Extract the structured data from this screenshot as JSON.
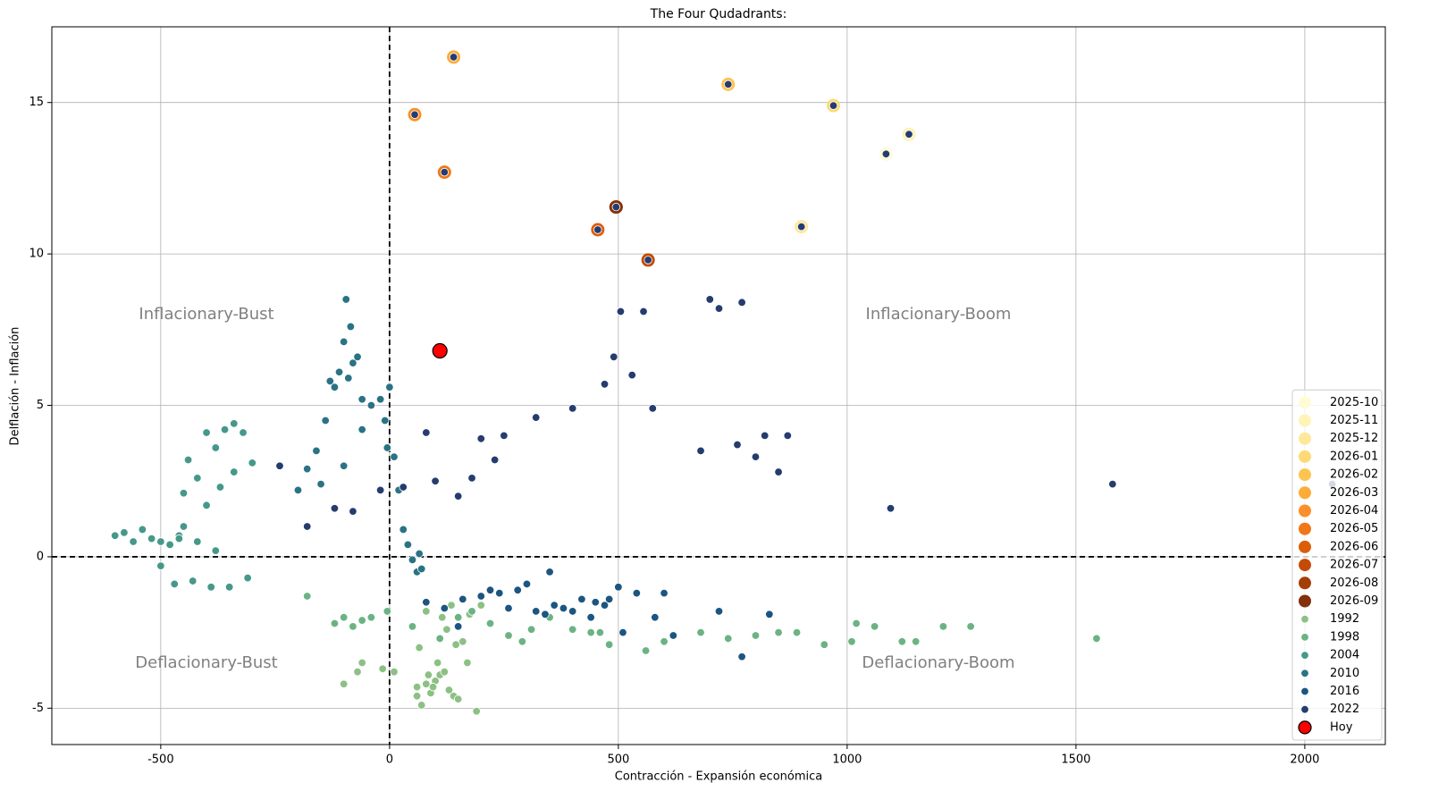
{
  "chart_data": {
    "type": "scatter",
    "title": "The Four Qudadrants:",
    "xlabel": "Contracción - Expansión económica",
    "ylabel": "Delflación - Inflación",
    "xlim": [
      -738,
      2176
    ],
    "ylim": [
      -6.2,
      17.5
    ],
    "xticks": [
      -500,
      0,
      500,
      1000,
      1500,
      2000
    ],
    "yticks": [
      -5,
      0,
      5,
      10,
      15
    ],
    "grid": true,
    "legend": "lower right",
    "annotations": [
      "Inflacionary-Bust",
      "Inflacionary-Boom",
      "Deflacionary-Bust",
      "Deflacionary-Boom"
    ],
    "forecast_series": [
      {
        "name": "2025-10",
        "color": "#fffbd5",
        "x": [
          1085
        ],
        "y": [
          13.3
        ]
      },
      {
        "name": "2025-11",
        "color": "#fff3b8",
        "x": [
          1135
        ],
        "y": [
          13.95
        ]
      },
      {
        "name": "2025-12",
        "color": "#fee89a",
        "x": [
          900
        ],
        "y": [
          10.9
        ]
      },
      {
        "name": "2026-01",
        "color": "#fed976",
        "x": [
          970
        ],
        "y": [
          14.9
        ]
      },
      {
        "name": "2026-02",
        "color": "#fec44f",
        "x": [
          740
        ],
        "y": [
          15.6
        ]
      },
      {
        "name": "2026-03",
        "color": "#fdac3a",
        "x": [
          140
        ],
        "y": [
          16.5
        ]
      },
      {
        "name": "2026-04",
        "color": "#fb8f29",
        "x": [
          55
        ],
        "y": [
          14.6
        ]
      },
      {
        "name": "2026-05",
        "color": "#f07818",
        "x": [
          120
        ],
        "y": [
          12.7
        ]
      },
      {
        "name": "2026-06",
        "color": "#dc5e0a",
        "x": [
          455
        ],
        "y": [
          10.8
        ]
      },
      {
        "name": "2026-07",
        "color": "#c44b05",
        "x": [
          565
        ],
        "y": [
          9.8
        ]
      },
      {
        "name": "2026-08",
        "color": "#a53e04",
        "x": [
          495
        ],
        "y": [
          11.55
        ]
      },
      {
        "name": "2026-09",
        "color": "#84300a",
        "x": [
          495
        ],
        "y": [
          11.55
        ]
      }
    ],
    "series": [
      {
        "name": "1992",
        "color": "#8cc084",
        "x": [
          -100,
          -60,
          -70,
          -15,
          10,
          60,
          70,
          80,
          90,
          100,
          110,
          120,
          130,
          140,
          150,
          95,
          85,
          105,
          65,
          190,
          170,
          160,
          125,
          115,
          135,
          145,
          175,
          200,
          80,
          60
        ],
        "y": [
          -4.2,
          -3.5,
          -3.8,
          -3.7,
          -3.8,
          -4.3,
          -4.9,
          -4.2,
          -4.5,
          -4.1,
          -3.9,
          -3.8,
          -4.4,
          -4.6,
          -4.7,
          -4.3,
          -3.9,
          -3.5,
          -3.0,
          -5.1,
          -3.5,
          -2.8,
          -2.4,
          -2.0,
          -1.6,
          -2.9,
          -1.9,
          -1.6,
          -1.8,
          -4.6
        ]
      },
      {
        "name": "1998",
        "color": "#6bb383",
        "x": [
          -180,
          -120,
          -100,
          -80,
          -60,
          -40,
          -5,
          50,
          110,
          150,
          180,
          220,
          260,
          290,
          310,
          350,
          400,
          440,
          460,
          480,
          560,
          600,
          680,
          740,
          800,
          850,
          890,
          950,
          1010,
          1020,
          1060,
          1120,
          1150,
          1210,
          1270,
          1545
        ],
        "y": [
          -1.3,
          -2.2,
          -2.0,
          -2.3,
          -2.1,
          -2.0,
          -1.8,
          -2.3,
          -2.7,
          -2.0,
          -1.8,
          -2.2,
          -2.6,
          -2.8,
          -2.4,
          -2.0,
          -2.4,
          -2.5,
          -2.5,
          -2.9,
          -3.1,
          -2.8,
          -2.5,
          -2.7,
          -2.6,
          -2.5,
          -2.5,
          -2.9,
          -2.8,
          -2.2,
          -2.3,
          -2.8,
          -2.8,
          -2.3,
          -2.3,
          -2.7
        ]
      },
      {
        "name": "2004",
        "color": "#45988a",
        "x": [
          -600,
          -580,
          -560,
          -540,
          -520,
          -500,
          -480,
          -460,
          -450,
          -440,
          -420,
          -400,
          -380,
          -360,
          -340,
          -320,
          -300,
          -470,
          -430,
          -390,
          -350,
          -310,
          -450,
          -400,
          -370,
          -340,
          -500,
          -460,
          -420,
          -380
        ],
        "y": [
          0.7,
          0.8,
          0.5,
          0.9,
          0.6,
          0.5,
          0.4,
          0.7,
          2.1,
          3.2,
          0.5,
          4.1,
          3.6,
          4.2,
          4.4,
          4.1,
          3.1,
          -0.9,
          -0.8,
          -1.0,
          -1.0,
          -0.7,
          1.0,
          1.7,
          2.3,
          2.8,
          -0.3,
          0.6,
          2.6,
          0.2
        ]
      },
      {
        "name": "2010",
        "color": "#2a7384",
        "x": [
          -200,
          -180,
          -160,
          -140,
          -130,
          -120,
          -110,
          -100,
          -95,
          -90,
          -85,
          -80,
          -70,
          -60,
          -40,
          -20,
          -10,
          0,
          -5,
          10,
          20,
          30,
          40,
          50,
          60,
          65,
          70,
          -150,
          -100,
          -60
        ],
        "y": [
          2.2,
          2.9,
          3.5,
          4.5,
          5.8,
          5.6,
          6.1,
          7.1,
          8.5,
          5.9,
          7.6,
          6.4,
          6.6,
          5.2,
          5.0,
          5.2,
          4.5,
          5.6,
          3.6,
          3.3,
          2.2,
          0.9,
          0.4,
          -0.1,
          -0.5,
          0.1,
          -0.4,
          2.4,
          3.0,
          4.2
        ]
      },
      {
        "name": "2016",
        "color": "#1d5581",
        "x": [
          80,
          120,
          160,
          200,
          240,
          280,
          300,
          320,
          350,
          360,
          380,
          420,
          450,
          470,
          500,
          510,
          540,
          580,
          600,
          620,
          720,
          770,
          830,
          480,
          440,
          400,
          340,
          260,
          220,
          150
        ],
        "y": [
          -1.5,
          -1.7,
          -1.4,
          -1.3,
          -1.2,
          -1.1,
          -0.9,
          -1.8,
          -0.5,
          -1.6,
          -1.7,
          -1.4,
          -1.5,
          -1.6,
          -1.0,
          -2.5,
          -1.2,
          -2.0,
          -1.2,
          -2.6,
          -1.8,
          -3.3,
          -1.9,
          -1.4,
          -2.0,
          -1.8,
          -1.9,
          -1.7,
          -1.1,
          -2.3
        ]
      },
      {
        "name": "2022",
        "color": "#253c6e",
        "x": [
          -240,
          -180,
          -120,
          -80,
          -20,
          30,
          80,
          100,
          150,
          180,
          200,
          230,
          250,
          320,
          400,
          470,
          490,
          505,
          530,
          555,
          575,
          680,
          700,
          720,
          760,
          770,
          800,
          820,
          850,
          870,
          1095,
          1580,
          2060,
          55,
          140,
          120,
          740,
          970,
          1135,
          1085,
          900,
          495,
          455,
          565
        ],
        "y": [
          3.0,
          1.0,
          1.6,
          1.5,
          2.2,
          2.3,
          4.1,
          2.5,
          2.0,
          2.6,
          3.9,
          3.2,
          4.0,
          4.6,
          4.9,
          5.7,
          6.6,
          8.1,
          6.0,
          8.1,
          4.9,
          3.5,
          8.5,
          8.2,
          3.7,
          8.4,
          3.3,
          4.0,
          2.8,
          4.0,
          1.6,
          2.4,
          2.4,
          14.6,
          16.5,
          12.7,
          15.6,
          14.9,
          13.95,
          13.3,
          10.9,
          11.55,
          10.8,
          9.8
        ]
      }
    ],
    "today": {
      "name": "Hoy",
      "color": "#ff0000",
      "x": [
        110
      ],
      "y": [
        6.8
      ]
    }
  }
}
